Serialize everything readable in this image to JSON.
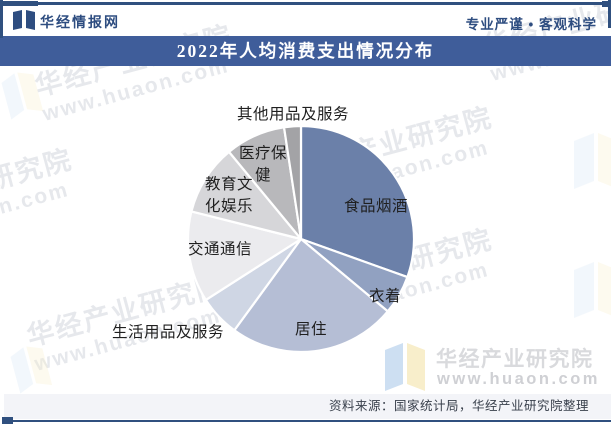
{
  "header": {
    "brand": "华经情报网",
    "slogan": "专业严谨 • 客观科学"
  },
  "title_bar": {
    "title": "2022年人均消费支出情况分布"
  },
  "chart_data": {
    "type": "pie",
    "title": "2022年人均消费支出情况分布",
    "unit": "percent_share",
    "start_angle_deg": 0,
    "direction": "clockwise",
    "legend_position": "none",
    "data_labels": "category-names-only",
    "slices": [
      {
        "label": "食品烟酒",
        "value": 30.5,
        "color": "#6b80a9",
        "label_placement": "inside"
      },
      {
        "label": "衣着",
        "value": 5.6,
        "color": "#91a1c1",
        "label_placement": "inside"
      },
      {
        "label": "居住",
        "value": 24.0,
        "color": "#b5bed5",
        "label_placement": "inside"
      },
      {
        "label": "生活用品及服务",
        "value": 5.9,
        "color": "#cfd6e4",
        "label_placement": "outside"
      },
      {
        "label": "交通通信",
        "value": 13.0,
        "color": "#ebebee",
        "label_placement": "outside"
      },
      {
        "label": "教育文化娱乐",
        "value": 10.1,
        "color": "#d6d6d9",
        "label_placement": "inside"
      },
      {
        "label": "医疗保健",
        "value": 8.6,
        "color": "#b8b8bb",
        "label_placement": "inside"
      },
      {
        "label": "其他用品及服务",
        "value": 2.4,
        "color": "#a3a3a6",
        "label_placement": "outside"
      }
    ]
  },
  "watermark": {
    "line1": "华经产业研究院",
    "line2": "www.huaon.com"
  },
  "footer": {
    "source": "资料来源：国家统计局，华经产业研究院整理"
  },
  "colors": {
    "navy": "#2e4d80",
    "frame": "#30507f",
    "titleBarBg": "#3f5d9a",
    "titleText": "#ffffff",
    "footerBg": "#f3f4f8",
    "labelText": "#1f1f1f",
    "wmLogoBlue": "#cddff2",
    "wmLogoYellow": "#f8eecb"
  }
}
